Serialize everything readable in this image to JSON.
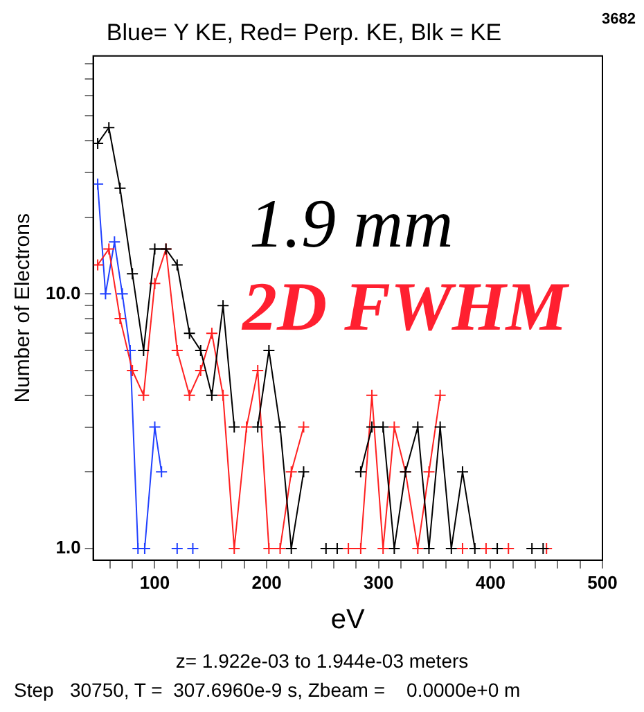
{
  "chart_data": {
    "type": "line",
    "title": "Blue= Y KE, Red= Perp. KE, Blk = KE",
    "xlabel": "eV",
    "ylabel": "Number of Electrons",
    "annotations": [
      "3682",
      "1.9 mm",
      "2D FWHM",
      "z= 1.922e-03 to 1.944e-03 meters",
      "Step   30750, T =  307.6960e-9 s, Zbeam =    0.0000e+0 m"
    ],
    "log": "y",
    "grid": false,
    "legend": false,
    "marker": "cross",
    "line_style": "solid",
    "xlim": [
      45,
      500
    ],
    "xticks": [
      {
        "value": 60,
        "label": null
      },
      {
        "value": 80,
        "label": null
      },
      100,
      {
        "value": 120,
        "label": null
      },
      {
        "value": 140,
        "label": null
      },
      {
        "value": 160,
        "label": null
      },
      {
        "value": 180,
        "label": null
      },
      200,
      {
        "value": 220,
        "label": null
      },
      {
        "value": 240,
        "label": null
      },
      {
        "value": 260,
        "label": null
      },
      {
        "value": 280,
        "label": null
      },
      300,
      {
        "value": 320,
        "label": null
      },
      {
        "value": 340,
        "label": null
      },
      {
        "value": 360,
        "label": null
      },
      {
        "value": 380,
        "label": null
      },
      400,
      {
        "value": 420,
        "label": null
      },
      {
        "value": 440,
        "label": null
      },
      {
        "value": 460,
        "label": null
      },
      {
        "value": 480,
        "label": null
      },
      500
    ],
    "ylim": [
      0.9,
      86
    ],
    "yticks": [
      {
        "value": 1,
        "label": "1.0"
      },
      {
        "value": 2,
        "label": null
      },
      {
        "value": 3,
        "label": null
      },
      {
        "value": 4,
        "label": null
      },
      {
        "value": 5,
        "label": null
      },
      {
        "value": 6,
        "label": null
      },
      {
        "value": 7,
        "label": null
      },
      {
        "value": 8,
        "label": null
      },
      {
        "value": 9,
        "label": null
      },
      {
        "value": 10,
        "label": "10.0"
      },
      {
        "value": 20,
        "label": null
      },
      {
        "value": 30,
        "label": null
      },
      {
        "value": 40,
        "label": null
      },
      {
        "value": 50,
        "label": null
      },
      {
        "value": 60,
        "label": null
      },
      {
        "value": 70,
        "label": null
      },
      {
        "value": 80,
        "label": null
      }
    ],
    "series": [
      {
        "color": "#000000",
        "x": [
          49,
          59,
          69,
          80,
          90,
          100,
          110,
          120,
          131,
          141,
          151,
          161,
          171,
          182,
          192,
          202,
          212,
          222,
          233,
          243,
          253,
          263,
          273,
          284,
          294,
          304,
          314,
          324,
          335,
          345,
          355,
          365,
          375,
          386,
          396,
          406,
          416,
          426,
          437,
          447
        ],
        "values": [
          39,
          45,
          26,
          12,
          6,
          15,
          15,
          13,
          7,
          6,
          4,
          9,
          3,
          null,
          3,
          6,
          3,
          1,
          2,
          null,
          1,
          1,
          null,
          2,
          3,
          3,
          1,
          2,
          3,
          1,
          3,
          1,
          2,
          1,
          null,
          1,
          null,
          null,
          1,
          1
        ]
      },
      {
        "color": "#ff2020",
        "x": [
          49,
          59,
          69,
          80,
          90,
          100,
          110,
          120,
          131,
          141,
          151,
          161,
          171,
          182,
          192,
          202,
          212,
          222,
          233,
          243,
          253,
          263,
          273,
          284,
          294,
          304,
          314,
          324,
          335,
          345,
          355,
          365,
          375,
          386,
          396,
          406,
          416,
          426,
          437,
          450
        ],
        "values": [
          13,
          15,
          8,
          5,
          4,
          11,
          15,
          6,
          4,
          5,
          7,
          4,
          1,
          3,
          5,
          1,
          1,
          2,
          3,
          null,
          null,
          null,
          1,
          1,
          4,
          1,
          3,
          2,
          1,
          2,
          4,
          null,
          1,
          null,
          1,
          null,
          1,
          null,
          null,
          1
        ]
      },
      {
        "color": "#2040ff",
        "x": [
          49,
          56,
          64,
          71,
          78,
          85,
          91,
          100,
          106,
          113,
          120,
          127,
          134
        ],
        "values": [
          27,
          10,
          16,
          10,
          6,
          1,
          1,
          3,
          2,
          null,
          1,
          null,
          1
        ]
      }
    ]
  }
}
